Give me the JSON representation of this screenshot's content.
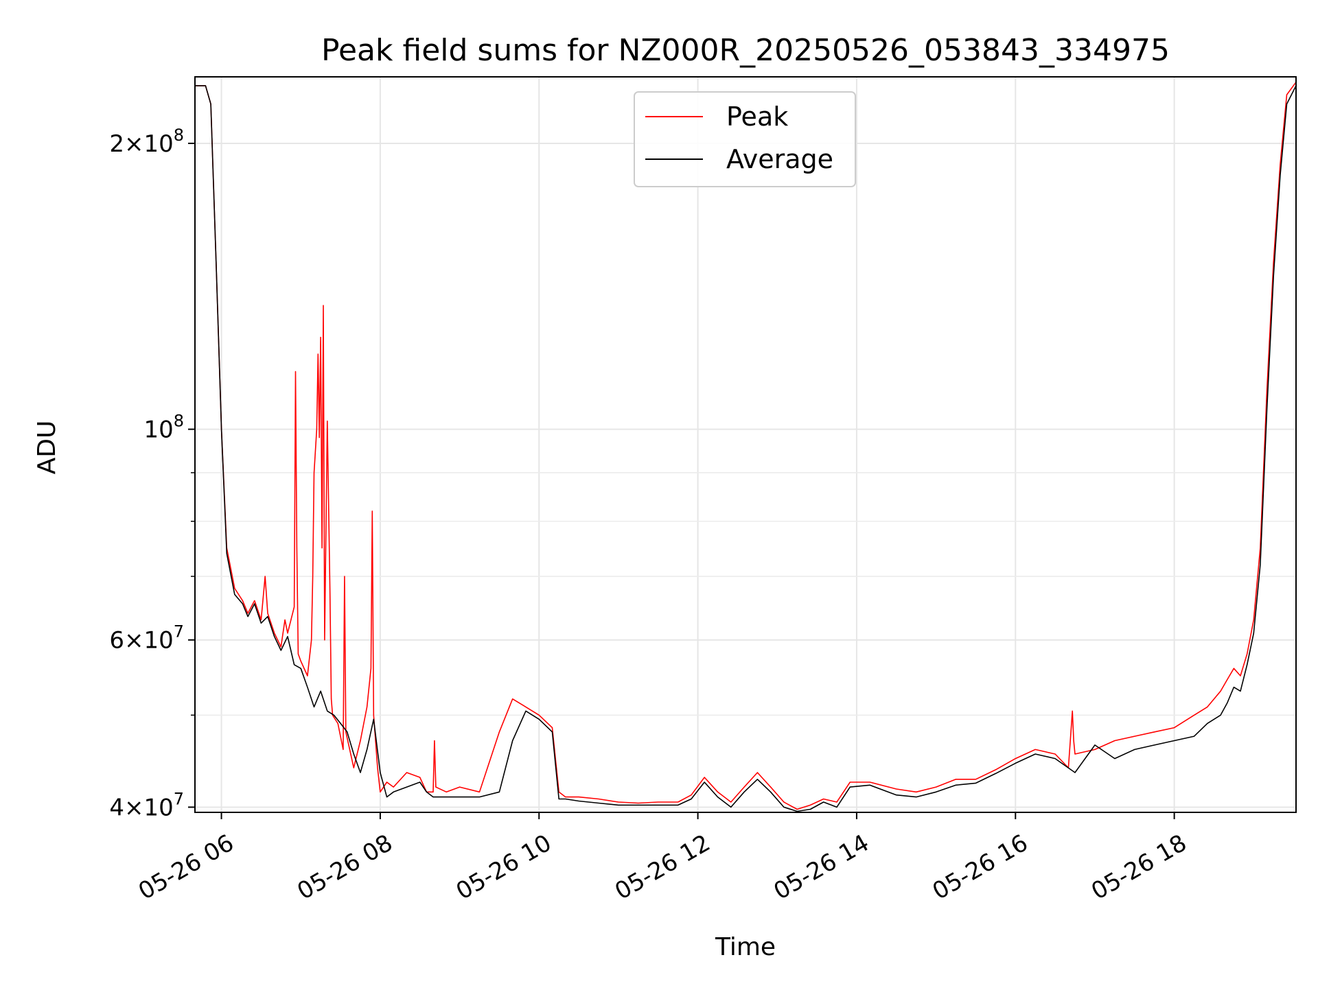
{
  "chart_data": {
    "type": "line",
    "title": "Peak field sums for NZ000R_20250526_053843_334975",
    "xlabel": "Time",
    "ylabel": "ADU",
    "y_scale": "log",
    "ylim": [
      39500000,
      235000000
    ],
    "xlim": [
      "2025-05-26 05:40",
      "2025-05-26 19:32"
    ],
    "grid": true,
    "legend": {
      "placement": "top-center"
    },
    "x_ticks": [
      {
        "t": "2025-05-26 06:00",
        "label": "05-26 06"
      },
      {
        "t": "2025-05-26 08:00",
        "label": "05-26 08"
      },
      {
        "t": "2025-05-26 10:00",
        "label": "05-26 10"
      },
      {
        "t": "2025-05-26 12:00",
        "label": "05-26 12"
      },
      {
        "t": "2025-05-26 14:00",
        "label": "05-26 14"
      },
      {
        "t": "2025-05-26 16:00",
        "label": "05-26 16"
      },
      {
        "t": "2025-05-26 18:00",
        "label": "05-26 18"
      }
    ],
    "y_ticks": [
      {
        "v": 40000000,
        "mant": "4",
        "exp": "7"
      },
      {
        "v": 60000000,
        "mant": "6",
        "exp": "7"
      },
      {
        "v": 100000000,
        "mant": "",
        "exp": "8"
      },
      {
        "v": 200000000,
        "mant": "2",
        "exp": "8"
      }
    ],
    "y_minor_ticks": [
      50000000,
      70000000,
      80000000,
      90000000
    ],
    "series": [
      {
        "name": "Peak",
        "color": "#ff0000",
        "x": [
          "2025-05-26 05:40",
          "2025-05-26 05:48",
          "2025-05-26 05:52",
          "2025-05-26 05:56",
          "2025-05-26 06:00",
          "2025-05-26 06:04",
          "2025-05-26 06:10",
          "2025-05-26 06:16",
          "2025-05-26 06:20",
          "2025-05-26 06:25",
          "2025-05-26 06:30",
          "2025-05-26 06:33",
          "2025-05-26 06:35",
          "2025-05-26 06:40",
          "2025-05-26 06:45",
          "2025-05-26 06:48",
          "2025-05-26 06:50",
          "2025-05-26 06:55",
          "2025-05-26 06:56",
          "2025-05-26 06:57",
          "2025-05-26 06:58",
          "2025-05-26 07:00",
          "2025-05-26 07:05",
          "2025-05-26 07:08",
          "2025-05-26 07:09",
          "2025-05-26 07:10",
          "2025-05-26 07:12",
          "2025-05-26 07:13",
          "2025-05-26 07:14",
          "2025-05-26 07:15",
          "2025-05-26 07:16",
          "2025-05-26 07:17",
          "2025-05-26 07:18",
          "2025-05-26 07:20",
          "2025-05-26 07:22",
          "2025-05-26 07:23",
          "2025-05-26 07:24",
          "2025-05-26 07:28",
          "2025-05-26 07:32",
          "2025-05-26 07:33",
          "2025-05-26 07:34",
          "2025-05-26 07:40",
          "2025-05-26 07:45",
          "2025-05-26 07:50",
          "2025-05-26 07:53",
          "2025-05-26 07:54",
          "2025-05-26 07:55",
          "2025-05-26 07:58",
          "2025-05-26 08:00",
          "2025-05-26 08:05",
          "2025-05-26 08:10",
          "2025-05-26 08:20",
          "2025-05-26 08:30",
          "2025-05-26 08:35",
          "2025-05-26 08:40",
          "2025-05-26 08:41",
          "2025-05-26 08:42",
          "2025-05-26 08:50",
          "2025-05-26 09:00",
          "2025-05-26 09:15",
          "2025-05-26 09:30",
          "2025-05-26 09:40",
          "2025-05-26 09:50",
          "2025-05-26 10:00",
          "2025-05-26 10:10",
          "2025-05-26 10:15",
          "2025-05-26 10:20",
          "2025-05-26 10:30",
          "2025-05-26 10:45",
          "2025-05-26 11:00",
          "2025-05-26 11:15",
          "2025-05-26 11:30",
          "2025-05-26 11:45",
          "2025-05-26 11:55",
          "2025-05-26 12:05",
          "2025-05-26 12:15",
          "2025-05-26 12:25",
          "2025-05-26 12:35",
          "2025-05-26 12:45",
          "2025-05-26 12:55",
          "2025-05-26 13:05",
          "2025-05-26 13:15",
          "2025-05-26 13:25",
          "2025-05-26 13:35",
          "2025-05-26 13:45",
          "2025-05-26 13:55",
          "2025-05-26 14:10",
          "2025-05-26 14:30",
          "2025-05-26 14:45",
          "2025-05-26 15:00",
          "2025-05-26 15:15",
          "2025-05-26 15:30",
          "2025-05-26 15:45",
          "2025-05-26 16:00",
          "2025-05-26 16:15",
          "2025-05-26 16:30",
          "2025-05-26 16:40",
          "2025-05-26 16:43",
          "2025-05-26 16:44",
          "2025-05-26 16:45",
          "2025-05-26 17:00",
          "2025-05-26 17:15",
          "2025-05-26 17:30",
          "2025-05-26 17:45",
          "2025-05-26 18:00",
          "2025-05-26 18:15",
          "2025-05-26 18:25",
          "2025-05-26 18:35",
          "2025-05-26 18:40",
          "2025-05-26 18:45",
          "2025-05-26 18:50",
          "2025-05-26 18:55",
          "2025-05-26 19:00",
          "2025-05-26 19:05",
          "2025-05-26 19:10",
          "2025-05-26 19:15",
          "2025-05-26 19:20",
          "2025-05-26 19:25",
          "2025-05-26 19:32"
        ],
        "values": [
          230000000,
          230000000,
          220000000,
          150000000,
          100000000,
          75000000,
          68000000,
          66000000,
          64000000,
          66000000,
          63000000,
          70000000,
          64000000,
          61000000,
          59000000,
          63000000,
          61000000,
          65000000,
          115000000,
          75000000,
          58000000,
          57000000,
          55000000,
          60000000,
          70000000,
          90000000,
          100000000,
          120000000,
          98000000,
          125000000,
          75000000,
          135000000,
          60000000,
          102000000,
          68000000,
          52000000,
          50000000,
          49000000,
          46000000,
          70000000,
          48000000,
          44000000,
          47000000,
          51000000,
          56000000,
          82000000,
          50000000,
          44000000,
          41500000,
          42500000,
          42000000,
          43500000,
          43000000,
          41500000,
          41500000,
          47000000,
          42000000,
          41500000,
          42000000,
          41500000,
          48000000,
          52000000,
          51000000,
          50000000,
          48500000,
          41500000,
          41000000,
          41000000,
          40800000,
          40500000,
          40400000,
          40500000,
          40500000,
          41200000,
          43000000,
          41500000,
          40500000,
          42000000,
          43500000,
          42000000,
          40500000,
          39800000,
          40200000,
          40800000,
          40500000,
          42500000,
          42500000,
          41800000,
          41500000,
          42000000,
          42800000,
          42800000,
          43800000,
          45000000,
          46000000,
          45500000,
          44000000,
          50500000,
          47000000,
          45500000,
          46000000,
          47000000,
          47500000,
          48000000,
          48500000,
          50000000,
          51000000,
          53000000,
          54500000,
          56000000,
          55000000,
          58000000,
          63000000,
          75000000,
          110000000,
          150000000,
          190000000,
          225000000,
          232000000
        ]
      },
      {
        "name": "Average",
        "color": "#000000",
        "x": [
          "2025-05-26 05:40",
          "2025-05-26 05:48",
          "2025-05-26 05:52",
          "2025-05-26 05:56",
          "2025-05-26 06:00",
          "2025-05-26 06:04",
          "2025-05-26 06:10",
          "2025-05-26 06:16",
          "2025-05-26 06:20",
          "2025-05-26 06:25",
          "2025-05-26 06:30",
          "2025-05-26 06:35",
          "2025-05-26 06:40",
          "2025-05-26 06:45",
          "2025-05-26 06:50",
          "2025-05-26 06:55",
          "2025-05-26 07:00",
          "2025-05-26 07:05",
          "2025-05-26 07:10",
          "2025-05-26 07:15",
          "2025-05-26 07:20",
          "2025-05-26 07:25",
          "2025-05-26 07:30",
          "2025-05-26 07:35",
          "2025-05-26 07:40",
          "2025-05-26 07:45",
          "2025-05-26 07:50",
          "2025-05-26 07:55",
          "2025-05-26 08:00",
          "2025-05-26 08:05",
          "2025-05-26 08:10",
          "2025-05-26 08:20",
          "2025-05-26 08:30",
          "2025-05-26 08:35",
          "2025-05-26 08:40",
          "2025-05-26 08:50",
          "2025-05-26 09:00",
          "2025-05-26 09:15",
          "2025-05-26 09:30",
          "2025-05-26 09:40",
          "2025-05-26 09:50",
          "2025-05-26 10:00",
          "2025-05-26 10:10",
          "2025-05-26 10:15",
          "2025-05-26 10:20",
          "2025-05-26 10:30",
          "2025-05-26 10:45",
          "2025-05-26 11:00",
          "2025-05-26 11:15",
          "2025-05-26 11:30",
          "2025-05-26 11:45",
          "2025-05-26 11:55",
          "2025-05-26 12:05",
          "2025-05-26 12:15",
          "2025-05-26 12:25",
          "2025-05-26 12:35",
          "2025-05-26 12:45",
          "2025-05-26 12:55",
          "2025-05-26 13:05",
          "2025-05-26 13:15",
          "2025-05-26 13:25",
          "2025-05-26 13:35",
          "2025-05-26 13:45",
          "2025-05-26 13:55",
          "2025-05-26 14:10",
          "2025-05-26 14:30",
          "2025-05-26 14:45",
          "2025-05-26 15:00",
          "2025-05-26 15:15",
          "2025-05-26 15:30",
          "2025-05-26 15:45",
          "2025-05-26 16:00",
          "2025-05-26 16:15",
          "2025-05-26 16:30",
          "2025-05-26 16:45",
          "2025-05-26 17:00",
          "2025-05-26 17:15",
          "2025-05-26 17:30",
          "2025-05-26 17:45",
          "2025-05-26 18:00",
          "2025-05-26 18:15",
          "2025-05-26 18:25",
          "2025-05-26 18:35",
          "2025-05-26 18:40",
          "2025-05-26 18:45",
          "2025-05-26 18:50",
          "2025-05-26 18:55",
          "2025-05-26 19:00",
          "2025-05-26 19:05",
          "2025-05-26 19:10",
          "2025-05-26 19:15",
          "2025-05-26 19:20",
          "2025-05-26 19:25",
          "2025-05-26 19:32"
        ],
        "values": [
          230000000,
          230000000,
          220000000,
          150000000,
          100000000,
          74000000,
          67000000,
          65500000,
          63500000,
          65500000,
          62500000,
          63500000,
          60500000,
          58500000,
          60500000,
          56500000,
          56000000,
          53500000,
          51000000,
          53000000,
          50500000,
          50000000,
          49000000,
          48000000,
          45500000,
          43500000,
          46000000,
          49500000,
          43500000,
          41000000,
          41500000,
          42000000,
          42500000,
          41500000,
          41000000,
          41000000,
          41000000,
          41000000,
          41500000,
          47000000,
          50500000,
          49500000,
          48000000,
          40800000,
          40800000,
          40600000,
          40400000,
          40200000,
          40200000,
          40200000,
          40200000,
          40800000,
          42500000,
          41000000,
          40000000,
          41500000,
          42800000,
          41500000,
          40000000,
          39600000,
          39800000,
          40500000,
          40000000,
          42000000,
          42200000,
          41200000,
          41000000,
          41500000,
          42200000,
          42400000,
          43400000,
          44500000,
          45500000,
          45000000,
          43500000,
          46500000,
          45000000,
          46000000,
          46500000,
          47000000,
          47500000,
          49000000,
          50000000,
          51500000,
          53500000,
          53000000,
          56500000,
          61000000,
          72000000,
          105000000,
          145000000,
          185000000,
          220000000,
          230000000
        ]
      }
    ]
  }
}
